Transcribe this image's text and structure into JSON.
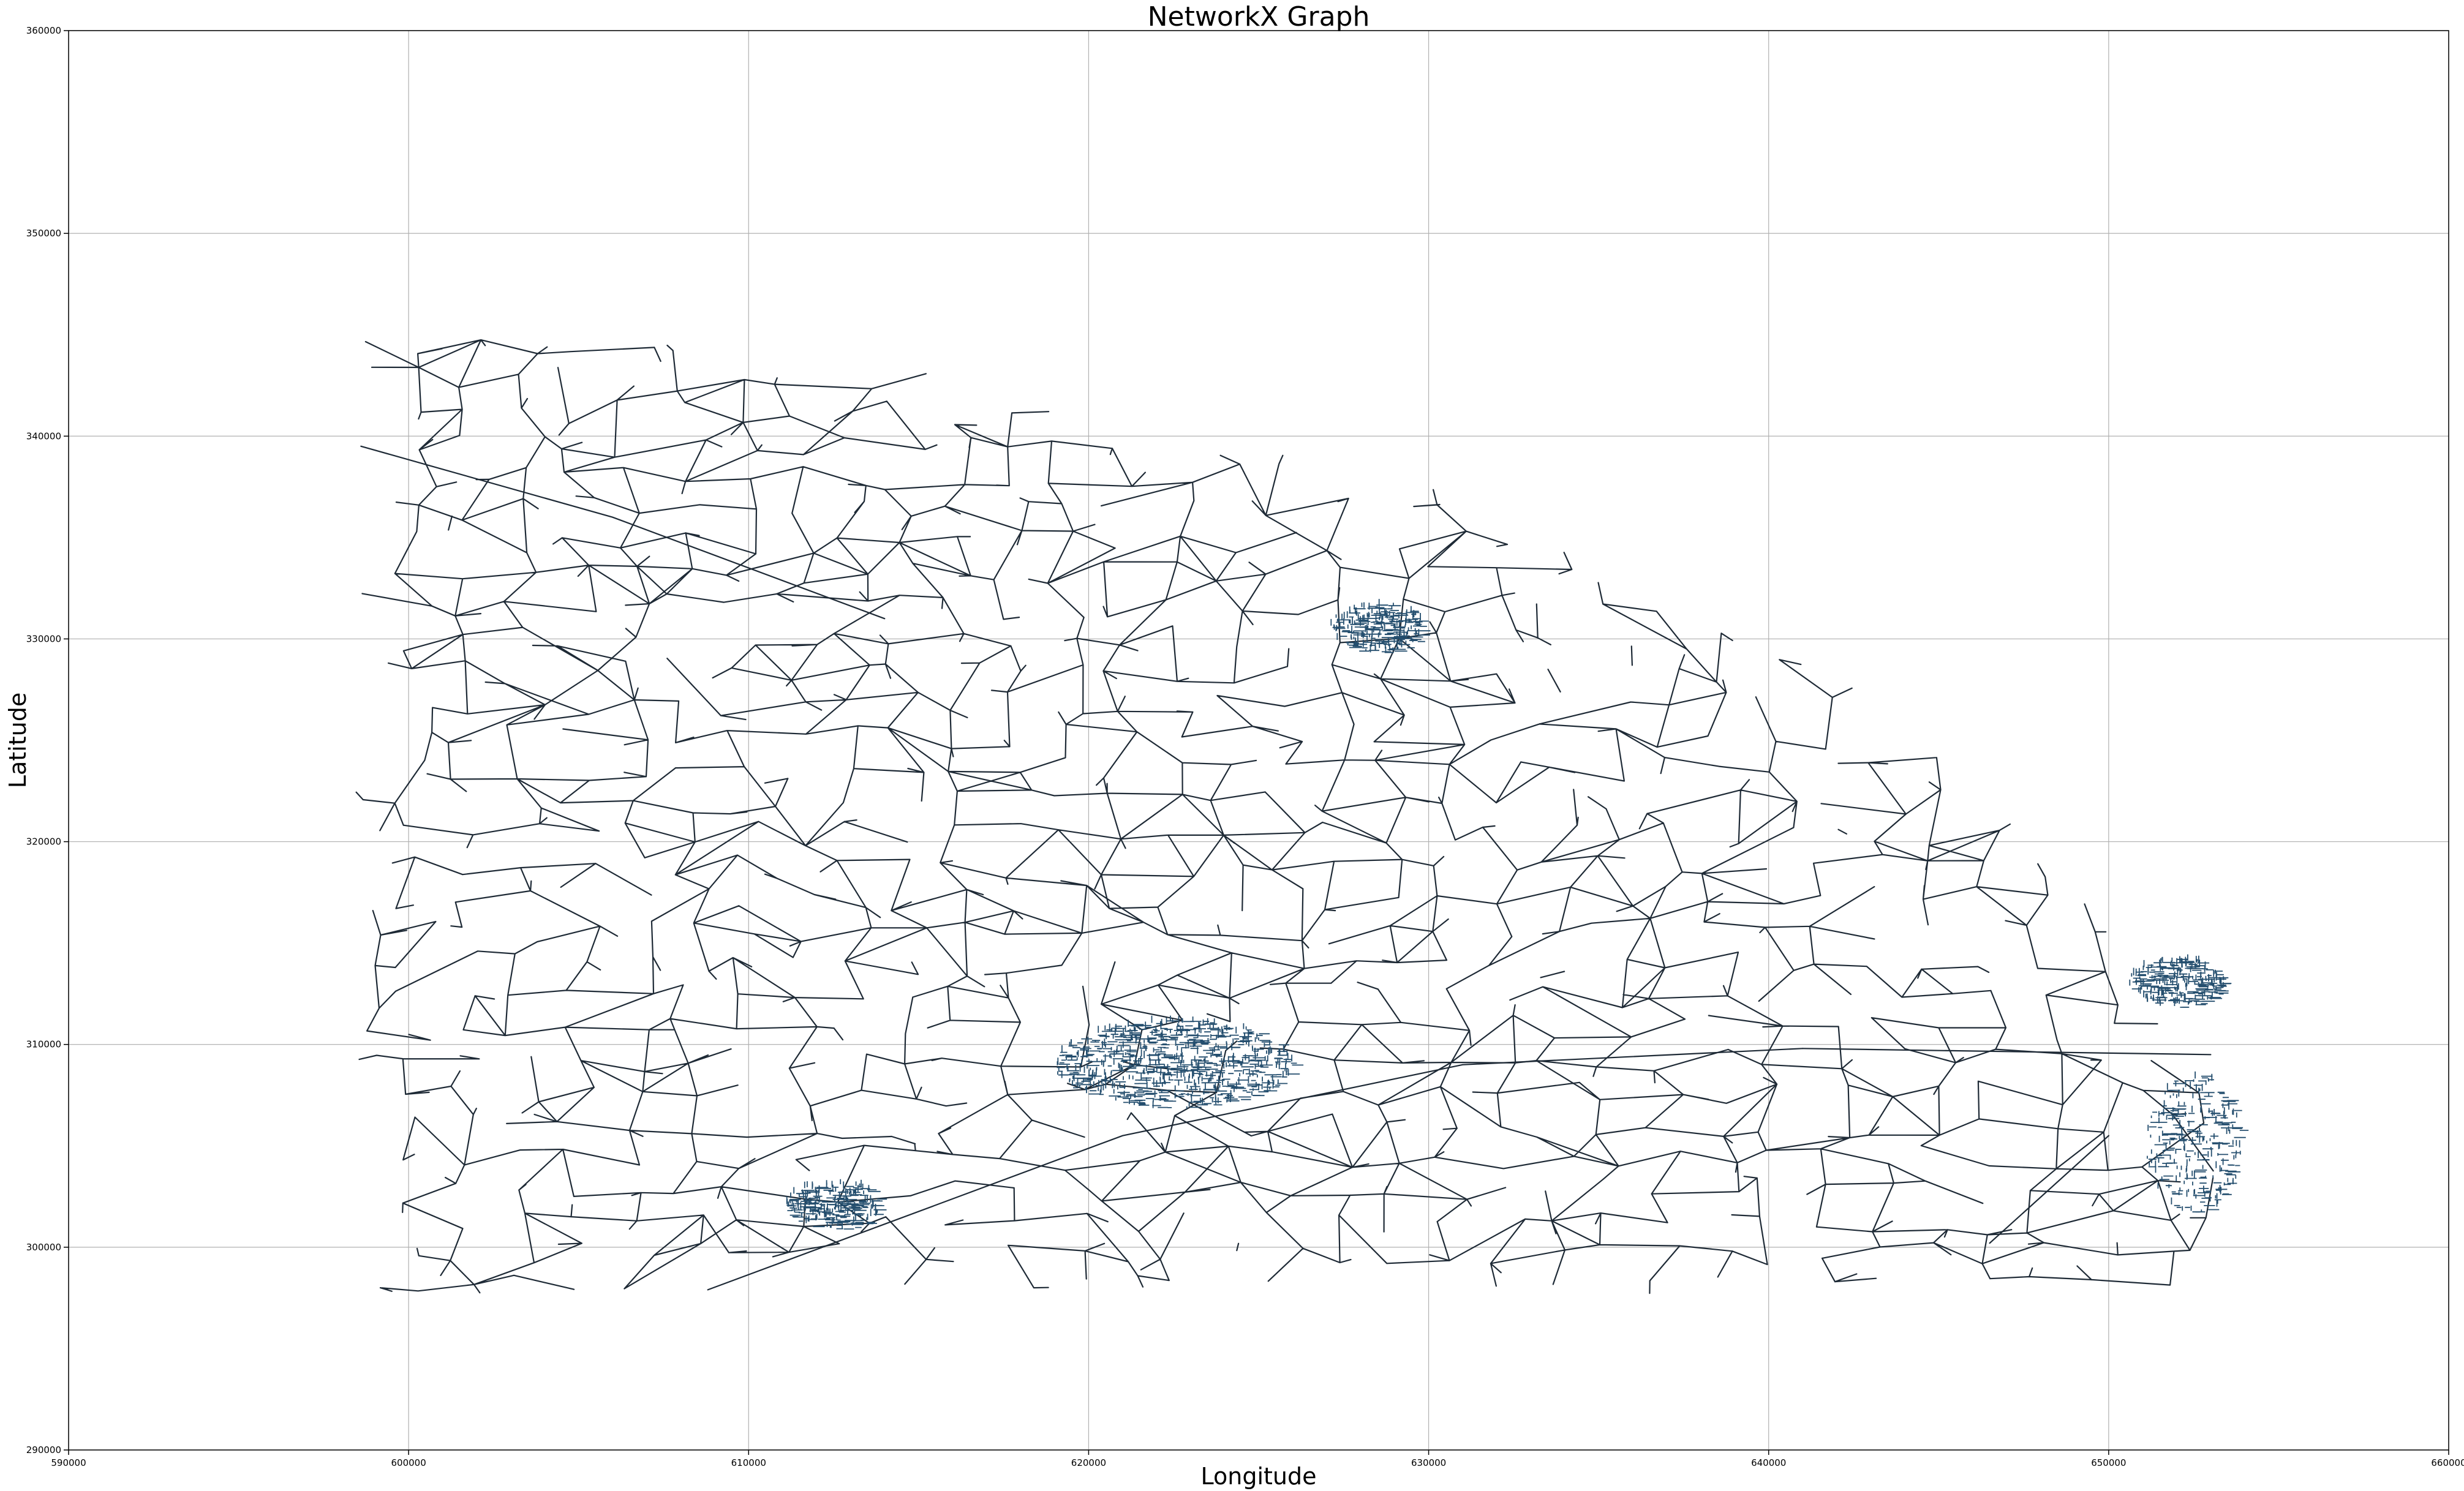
{
  "chart_data": {
    "type": "network-graph",
    "title": "NetworkX Graph",
    "xlabel": "Longitude",
    "ylabel": "Latitude",
    "xlim": [
      590000,
      660000
    ],
    "ylim": [
      290000,
      360000
    ],
    "grid": true,
    "x_ticks": [
      590000,
      600000,
      610000,
      620000,
      630000,
      640000,
      650000,
      660000
    ],
    "y_ticks": [
      290000,
      300000,
      310000,
      320000,
      330000,
      340000,
      350000,
      360000
    ],
    "x_tick_labels": [
      "590000",
      "600000",
      "610000",
      "620000",
      "630000",
      "640000",
      "650000",
      "660000"
    ],
    "y_tick_labels": [
      "290000",
      "300000",
      "310000",
      "320000",
      "330000",
      "340000",
      "350000",
      "360000"
    ],
    "edge_color": "#1e2a36",
    "node_color": "#1f77b4",
    "network_extent": {
      "x": [
        598600,
        653400
      ],
      "y": [
        297800,
        345000
      ]
    },
    "dense_clusters": [
      {
        "x": 622500,
        "y": 309000
      },
      {
        "x": 652500,
        "y": 305000
      },
      {
        "x": 612500,
        "y": 302000
      },
      {
        "x": 628500,
        "y": 330500
      },
      {
        "x": 652000,
        "y": 313000
      }
    ]
  }
}
